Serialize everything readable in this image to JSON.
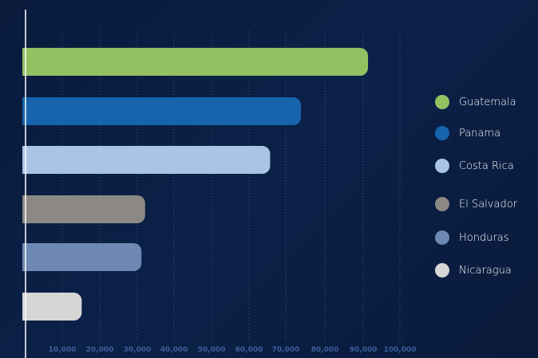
{
  "chart_data": {
    "type": "bar",
    "orientation": "horizontal",
    "categories": [
      "Guatemala",
      "Panama",
      "Costa Rica",
      "El Salvador",
      "Honduras",
      "Nicaragua"
    ],
    "values": [
      94500,
      76000,
      67500,
      33000,
      32000,
      15500
    ],
    "colors": [
      "#92c162",
      "#1763ad",
      "#a9c4e4",
      "#8b8885",
      "#6c88b3",
      "#d6d6d6"
    ],
    "x_ticks": [
      "10,000",
      "20,000",
      "30,000",
      "40,000",
      "50,000",
      "60,000",
      "70,000",
      "80,000",
      "90,000",
      "100,000"
    ],
    "xlim": [
      0,
      100000
    ],
    "grid": true,
    "legend": {
      "position": "right",
      "entries": [
        "Guatemala",
        "Panama",
        "Costa Rica",
        "El Salvador",
        "Honduras",
        "Nicaragua"
      ]
    }
  }
}
